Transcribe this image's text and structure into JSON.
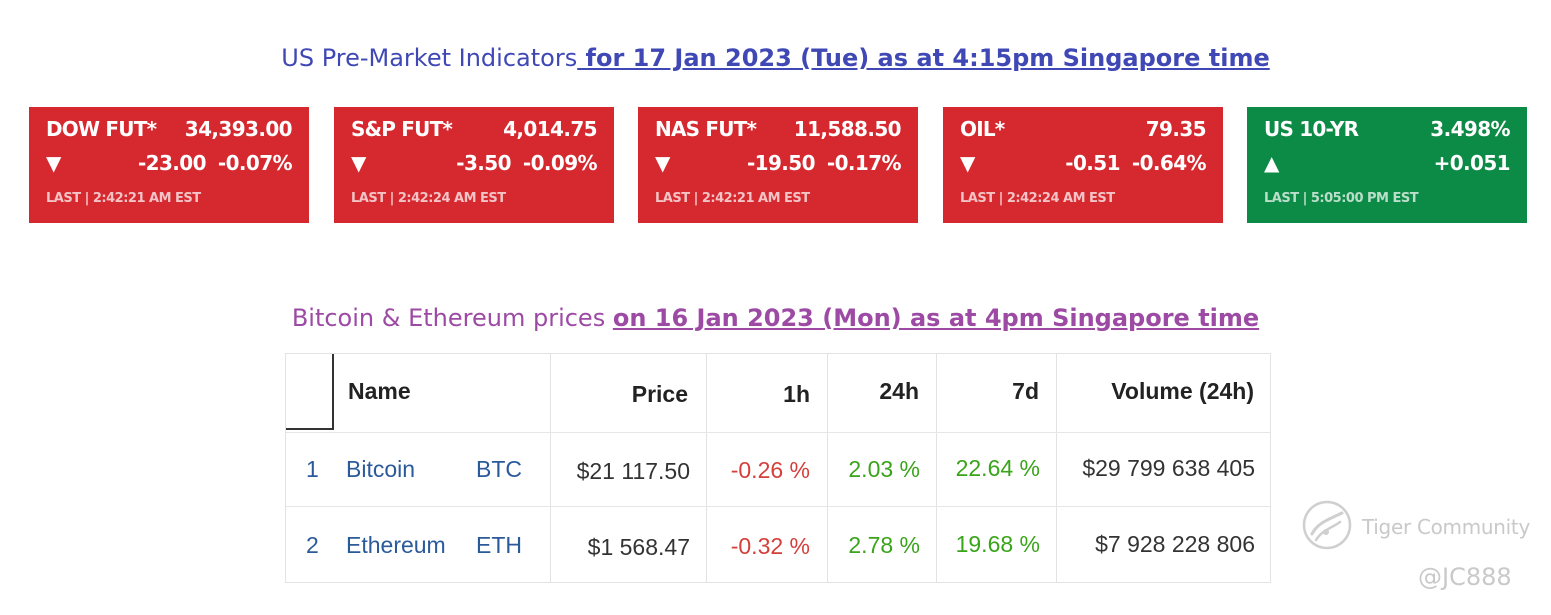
{
  "premarket": {
    "title_plain": "US Pre-Market Indicators",
    "title_emphasis": " for 17 Jan 2023 (Tue) as at 4:15pm Singapore time",
    "cards": [
      {
        "symbol": "DOW FUT*",
        "price": "34,393.00",
        "arrow": "▼",
        "change": "-23.00",
        "percent": "-0.07%",
        "last": "LAST | 2:42:21 AM EST",
        "color": "#d6282f"
      },
      {
        "symbol": "S&P FUT*",
        "price": "4,014.75",
        "arrow": "▼",
        "change": "-3.50",
        "percent": "-0.09%",
        "last": "LAST | 2:42:24 AM EST",
        "color": "#d6282f"
      },
      {
        "symbol": "NAS FUT*",
        "price": "11,588.50",
        "arrow": "▼",
        "change": "-19.50",
        "percent": "-0.17%",
        "last": "LAST | 2:42:21 AM EST",
        "color": "#d6282f"
      },
      {
        "symbol": "OIL*",
        "price": "79.35",
        "arrow": "▼",
        "change": "-0.51",
        "percent": "-0.64%",
        "last": "LAST | 2:42:24 AM EST",
        "color": "#d6282f"
      },
      {
        "symbol": "US 10-YR",
        "price": "3.498%",
        "arrow": "▲",
        "change": "+0.051",
        "percent": "",
        "last": "LAST | 5:05:00 PM EST",
        "color": "#0c8b46"
      }
    ]
  },
  "crypto": {
    "title_plain": "Bitcoin & Ethereum prices ",
    "title_emphasis": "on 16 Jan 2023 (Mon) as at 4pm Singapore time",
    "headers": {
      "name": "Name",
      "price": "Price",
      "h1": "1h",
      "h24": "24h",
      "d7": "7d",
      "volume": "Volume (24h)"
    },
    "rows": [
      {
        "rank": "1",
        "name": "Bitcoin",
        "ticker": "BTC",
        "price": "$21 117.50",
        "h1": "-0.26 %",
        "h24": "2.03 %",
        "d7": "22.64 %",
        "volume": "$29 799 638 405"
      },
      {
        "rank": "2",
        "name": "Ethereum",
        "ticker": "ETH",
        "price": "$1 568.47",
        "h1": "-0.32 %",
        "h24": "2.78 %",
        "d7": "19.68 %",
        "volume": "$7 928 228 806"
      }
    ]
  },
  "watermark": {
    "brand": "Tiger Community",
    "handle": "@JC888",
    "icon": "tiger-logo-icon"
  }
}
